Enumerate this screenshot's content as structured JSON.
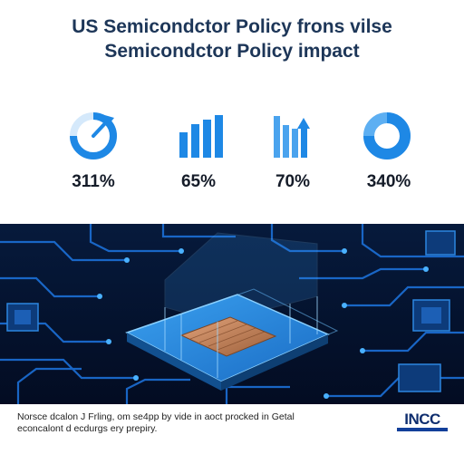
{
  "title": {
    "line1": "US Semicondctor Policy frons vilse",
    "line2": "Semicondctor Policy impact"
  },
  "stats": [
    {
      "value": "311%",
      "icon": "progress-ring-icon"
    },
    {
      "value": "65%",
      "icon": "bar-chart-icon"
    },
    {
      "value": "70%",
      "icon": "bar-chart-arrow-up-icon"
    },
    {
      "value": "340%",
      "icon": "donut-chart-icon"
    }
  ],
  "footer": {
    "caption_line1": "Norsce dcalon J Frling, om se4pp by vide in aoct procked in Getal",
    "caption_line2": "econcalont d ecdurgs ery prepiry.",
    "brand": "INCC"
  },
  "colors": {
    "title": "#1d3658",
    "icon_blue": "#1e88e5",
    "hero_bg": "#04112b",
    "trace": "#1c6fd6",
    "chip": "#2a8bdc",
    "die": "#c98a5a"
  }
}
